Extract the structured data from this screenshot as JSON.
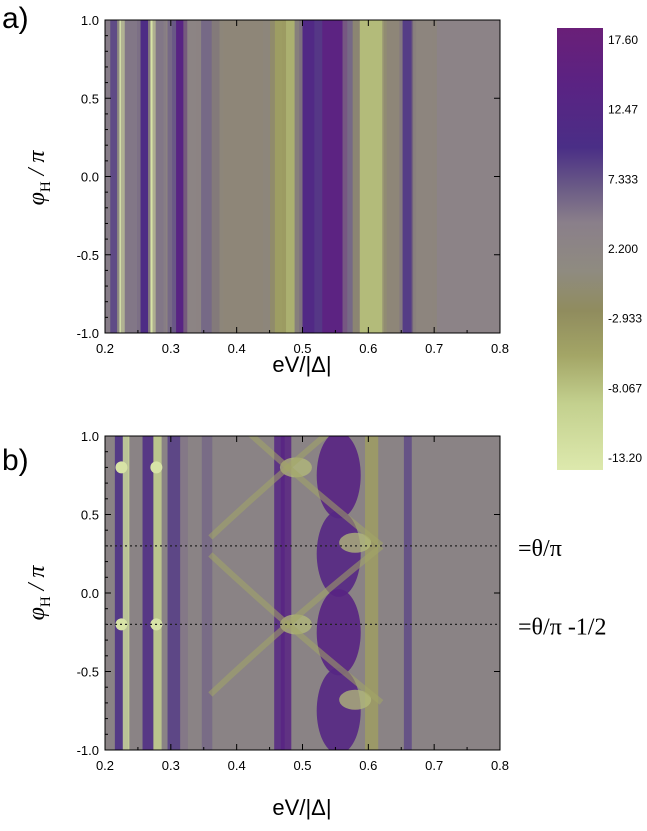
{
  "chart_data": [
    {
      "type": "heatmap",
      "panel_label": "a)",
      "xlabel": "eV/|Δ|",
      "ylabel_main": "φ",
      "ylabel_sub": "H",
      "ylabel_suffix": " / π",
      "xlim": [
        0.2,
        0.8
      ],
      "ylim": [
        -1.0,
        1.0
      ],
      "x_ticks": [
        "0.2",
        "0.3",
        "0.4",
        "0.5",
        "0.6",
        "0.7",
        "0.8"
      ],
      "y_ticks": [
        "-1.0",
        "-0.5",
        "0.0",
        "0.5",
        "1.0"
      ],
      "x_tick_values": [
        0.2,
        0.3,
        0.4,
        0.5,
        0.6,
        0.7,
        0.8
      ],
      "y_tick_values": [
        -1.0,
        -0.5,
        0.0,
        0.5,
        1.0
      ],
      "description_bands": [
        {
          "x": 0.22,
          "value": 6,
          "width": 0.012
        },
        {
          "x": 0.228,
          "value": -13,
          "width": 0.006
        },
        {
          "x": 0.24,
          "value": 3,
          "width": 0.01
        },
        {
          "x": 0.262,
          "value": 9,
          "width": 0.008
        },
        {
          "x": 0.275,
          "value": -12,
          "width": 0.006
        },
        {
          "x": 0.285,
          "value": 3,
          "width": 0.008
        },
        {
          "x": 0.305,
          "value": 4,
          "width": 0.01
        },
        {
          "x": 0.318,
          "value": 12,
          "width": 0.01
        },
        {
          "x": 0.335,
          "value": 2,
          "width": 0.01
        },
        {
          "x": 0.36,
          "value": 4,
          "width": 0.014
        },
        {
          "x": 0.41,
          "value": 1,
          "width": 0.03
        },
        {
          "x": 0.47,
          "value": -3,
          "width": 0.012
        },
        {
          "x": 0.485,
          "value": -5,
          "width": 0.01
        },
        {
          "x": 0.52,
          "value": 10,
          "width": 0.02
        },
        {
          "x": 0.55,
          "value": 13,
          "width": 0.02
        },
        {
          "x": 0.58,
          "value": 4,
          "width": 0.012
        },
        {
          "x": 0.605,
          "value": -6,
          "width": 0.018
        },
        {
          "x": 0.64,
          "value": 1,
          "width": 0.012
        },
        {
          "x": 0.66,
          "value": 7,
          "width": 0.008
        },
        {
          "x": 0.685,
          "value": 1.5,
          "width": 0.012
        }
      ]
    },
    {
      "type": "heatmap",
      "panel_label": "b)",
      "xlabel": "eV/|Δ|",
      "ylabel_main": "φ",
      "ylabel_sub": "H",
      "ylabel_suffix": " / π",
      "xlim": [
        0.2,
        0.8
      ],
      "ylim": [
        -1.0,
        1.0
      ],
      "x_ticks": [
        "0.2",
        "0.3",
        "0.4",
        "0.5",
        "0.6",
        "0.7",
        "0.8"
      ],
      "y_ticks": [
        "-1.0",
        "-0.5",
        "0.0",
        "0.5",
        "1.0"
      ],
      "x_tick_values": [
        0.2,
        0.3,
        0.4,
        0.5,
        0.6,
        0.7,
        0.8
      ],
      "y_tick_values": [
        -1.0,
        -0.5,
        0.0,
        0.5,
        1.0
      ],
      "reference_lines": [
        {
          "y": 0.3,
          "label": "=θ/π"
        },
        {
          "y": -0.2,
          "label": "=θ/π -1/2"
        }
      ]
    }
  ],
  "colorbar": {
    "labels": [
      "17.60",
      "12.47",
      "7.333",
      "2.200",
      "-2.933",
      "-8.067",
      "-13.20"
    ],
    "values": [
      17.6,
      12.47,
      7.333,
      2.2,
      -2.933,
      -8.067,
      -13.2
    ],
    "colors": {
      "top": "#5e1a70",
      "upper": "#4a2a86",
      "mid": "#8a7f86",
      "lower": "#8c8a55",
      "bottom": "#d8e6a6"
    }
  }
}
